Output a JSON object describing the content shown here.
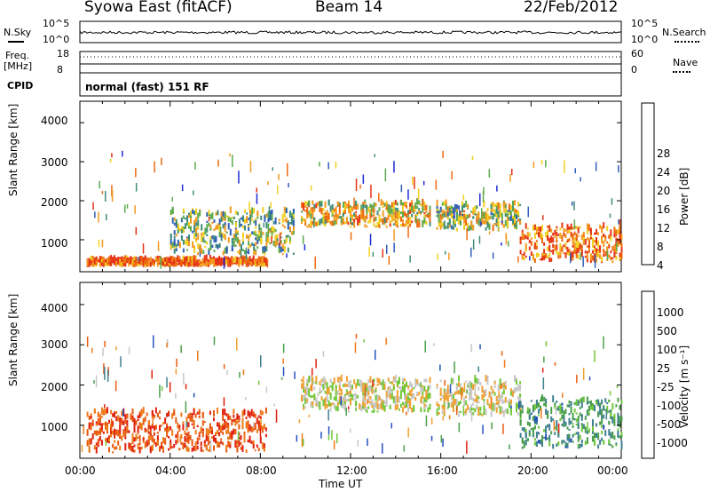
{
  "header": {
    "station": "Syowa East (fitACF)",
    "beam": "Beam 14",
    "date": "22/Feb/2012"
  },
  "noise_panel": {
    "left_label": "N.Sky",
    "right_label": "N.Search",
    "ticks_left": [
      "10^5",
      "10^0"
    ],
    "ticks_right": [
      "10^5",
      "10^0"
    ]
  },
  "freq_panel": {
    "left_label_1": "Freq.",
    "left_label_2": "[MHz]",
    "right_label": "Nave",
    "ticks_left": [
      "18",
      "8"
    ],
    "ticks_right": [
      "60",
      "0"
    ]
  },
  "cpid": {
    "label": "CPID",
    "value": "normal (fast) 151 RF"
  },
  "chart_data": [
    {
      "type": "heatmap",
      "title": "",
      "xlabel": "Time UT",
      "ylabel": "Slant Range [km]",
      "xlim": [
        "00:00",
        "24:00"
      ],
      "ylim": [
        180,
        4550
      ],
      "x_ticks": [
        "00:00",
        "04:00",
        "08:00",
        "12:00",
        "16:00",
        "20:00",
        "00:00"
      ],
      "y_ticks": [
        "1000",
        "2000",
        "3000",
        "4000"
      ],
      "colorbar": {
        "label": "Power [dB]",
        "ticks": [
          "4",
          "8",
          "12",
          "16",
          "20",
          "24",
          "28"
        ],
        "colors": [
          "#1f2cd6",
          "#2f5fb8",
          "#3f8c7a",
          "#5cab4c",
          "#f0d020",
          "#f49a20",
          "#ee6a10",
          "#e53416"
        ]
      },
      "features": [
        {
          "t": [
            0.3,
            8.3
          ],
          "r": [
            300,
            450
          ],
          "level": 0.85
        },
        {
          "t": [
            4.0,
            9.5
          ],
          "r": [
            600,
            1700
          ],
          "level": 0.45
        },
        {
          "t": [
            9.8,
            15.5
          ],
          "r": [
            1300,
            1900
          ],
          "level": 0.6
        },
        {
          "t": [
            15.8,
            19.5
          ],
          "r": [
            1200,
            1900
          ],
          "level": 0.5
        },
        {
          "t": [
            19.5,
            24.0
          ],
          "r": [
            400,
            1300
          ],
          "level": 0.8
        }
      ]
    },
    {
      "type": "heatmap",
      "title": "",
      "xlabel": "Time UT",
      "ylabel": "Slant Range [km]",
      "xlim": [
        "00:00",
        "24:00"
      ],
      "ylim": [
        180,
        4550
      ],
      "x_ticks": [
        "00:00",
        "04:00",
        "08:00",
        "12:00",
        "16:00",
        "20:00",
        "00:00"
      ],
      "y_ticks": [
        "1000",
        "2000",
        "3000",
        "4000"
      ],
      "colorbar": {
        "label": "Velocity [m s⁻¹]",
        "ticks": [
          "1000",
          "500",
          "100",
          "25",
          "-25",
          "-100",
          "-500",
          "-1000"
        ],
        "colors": [
          "#2550c0",
          "#3f8090",
          "#4aa04a",
          "#70c838",
          "#c8c8c8",
          "#f0a030",
          "#ee7a18",
          "#e85a10",
          "#e02010"
        ]
      },
      "features": [
        {
          "t": [
            0.3,
            8.3
          ],
          "r": [
            300,
            1300
          ],
          "level": -0.7
        },
        {
          "t": [
            9.8,
            15.5
          ],
          "r": [
            1300,
            2100
          ],
          "level": 0.0
        },
        {
          "t": [
            15.8,
            19.5
          ],
          "r": [
            1200,
            2100
          ],
          "level": 0.0
        },
        {
          "t": [
            19.5,
            24.0
          ],
          "r": [
            400,
            1600
          ],
          "level": 0.5
        }
      ]
    }
  ]
}
